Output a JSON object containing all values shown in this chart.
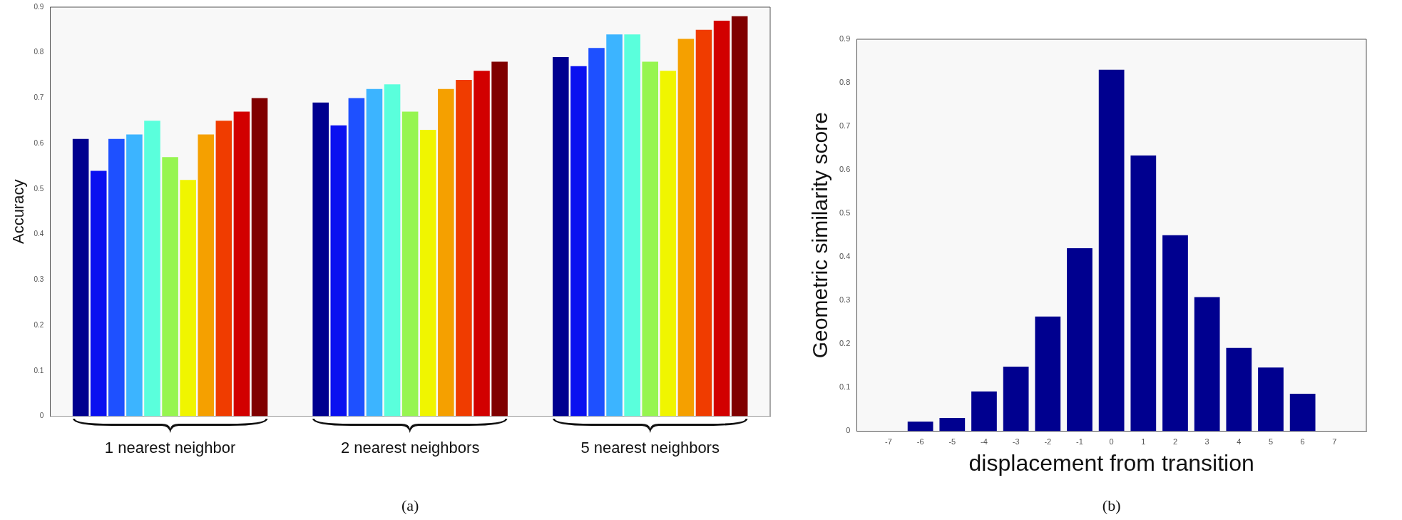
{
  "chart_data": [
    {
      "type": "bar",
      "ylabel": "Accuracy",
      "categories": [
        "1 nearest neighbor",
        "2 nearest neighbors",
        "5 nearest neighbors"
      ],
      "ylim": [
        0,
        0.9
      ],
      "yticks": [
        0,
        0.1,
        0.2,
        0.3,
        0.4,
        0.5,
        0.6,
        0.7,
        0.8,
        0.9
      ],
      "annotations": [
        "(a)"
      ],
      "series": [
        {
          "color": "#00008f",
          "values": [
            0.61,
            0.69,
            0.79
          ]
        },
        {
          "color": "#0a10f0",
          "values": [
            0.54,
            0.64,
            0.77
          ]
        },
        {
          "color": "#1e50ff",
          "values": [
            0.61,
            0.7,
            0.81
          ]
        },
        {
          "color": "#3cb4ff",
          "values": [
            0.62,
            0.72,
            0.84
          ]
        },
        {
          "color": "#5affdc",
          "values": [
            0.65,
            0.73,
            0.84
          ]
        },
        {
          "color": "#96f550",
          "values": [
            0.57,
            0.67,
            0.78
          ]
        },
        {
          "color": "#f0f500",
          "values": [
            0.52,
            0.63,
            0.76
          ]
        },
        {
          "color": "#f5a000",
          "values": [
            0.62,
            0.72,
            0.83
          ]
        },
        {
          "color": "#f03c00",
          "values": [
            0.65,
            0.74,
            0.85
          ]
        },
        {
          "color": "#d20000",
          "values": [
            0.67,
            0.76,
            0.87
          ]
        },
        {
          "color": "#800000",
          "values": [
            0.7,
            0.78,
            0.88
          ]
        }
      ]
    },
    {
      "type": "bar",
      "xlabel": "displacement from transition",
      "ylabel": "Geometric similarity score",
      "x": [
        -6,
        -5,
        -4,
        -3,
        -2,
        -1,
        0,
        1,
        2,
        3,
        4,
        5,
        6
      ],
      "values": [
        0.022,
        0.03,
        0.091,
        0.148,
        0.263,
        0.42,
        0.83,
        0.633,
        0.45,
        0.308,
        0.191,
        0.146,
        0.086
      ],
      "color": "#00008f",
      "xlim": [
        -8,
        8
      ],
      "xticks": [
        -7,
        -6,
        -5,
        -4,
        -3,
        -2,
        -1,
        0,
        1,
        2,
        3,
        4,
        5,
        6,
        7
      ],
      "ylim": [
        0,
        0.9
      ],
      "yticks": [
        0,
        0.1,
        0.2,
        0.3,
        0.4,
        0.5,
        0.6,
        0.7,
        0.8,
        0.9
      ],
      "annotations": [
        "(b)"
      ]
    }
  ]
}
